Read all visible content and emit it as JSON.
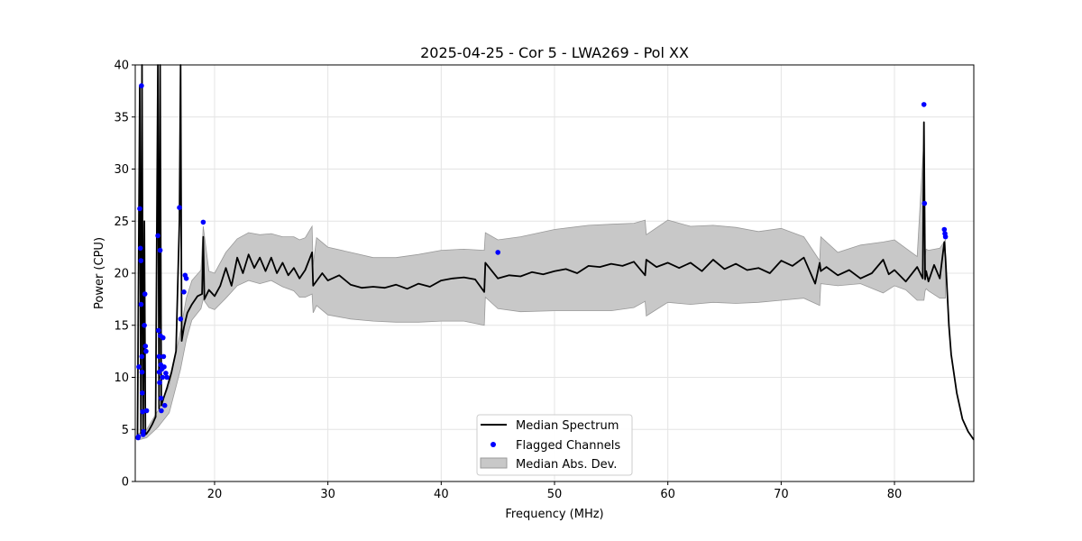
{
  "chart_data": {
    "type": "line",
    "title": "2025-04-25 - Cor 5 - LWA269 - Pol XX",
    "xlabel": "Frequency (MHz)",
    "ylabel": "Power (CPU)",
    "xlim": [
      13.0,
      87.0
    ],
    "ylim": [
      0,
      40
    ],
    "xticks": [
      20,
      30,
      40,
      50,
      60,
      70,
      80
    ],
    "yticks": [
      0,
      5,
      10,
      15,
      20,
      25,
      30,
      35,
      40
    ],
    "grid": true,
    "legend_position": "bottom-center",
    "colors": {
      "median": "#000000",
      "flagged": "#0000ff",
      "band_fill": "#c8c8c8",
      "band_edge": "#9a9a9a",
      "grid": "#e4e4e4"
    },
    "series": [
      {
        "name": "Median Spectrum",
        "x": [
          13.2,
          13.4,
          13.5,
          13.6,
          13.7,
          13.8,
          13.9,
          14.0,
          14.2,
          14.5,
          14.8,
          15.0,
          15.1,
          15.2,
          15.3,
          15.5,
          15.8,
          16.2,
          16.6,
          16.9,
          17.0,
          17.1,
          17.3,
          17.6,
          18.0,
          18.5,
          18.9,
          19.0,
          19.1,
          19.5,
          20.0,
          20.5,
          21.0,
          21.5,
          22.0,
          22.5,
          23.0,
          23.5,
          24.0,
          24.5,
          25.0,
          25.5,
          26.0,
          26.5,
          27.0,
          27.5,
          28.0,
          28.6,
          28.7,
          29.5,
          30.0,
          31.0,
          32.0,
          33.0,
          34.0,
          35.0,
          36.0,
          37.0,
          38.0,
          39.0,
          40.0,
          41.0,
          42.0,
          43.0,
          43.8,
          43.9,
          45.0,
          46.0,
          47.0,
          48.0,
          49.0,
          50.0,
          51.0,
          52.0,
          53.0,
          54.0,
          55.0,
          56.0,
          57.0,
          58.0,
          58.1,
          59.0,
          60.0,
          61.0,
          62.0,
          63.0,
          64.0,
          65.0,
          66.0,
          67.0,
          68.0,
          69.0,
          70.0,
          71.0,
          72.0,
          73.0,
          73.4,
          73.5,
          74.0,
          75.0,
          76.0,
          77.0,
          78.0,
          79.0,
          79.5,
          80.0,
          81.0,
          82.0,
          82.5,
          82.6,
          82.7,
          82.8,
          83.0,
          83.5,
          84.0,
          84.4,
          84.5,
          84.8,
          85.0,
          85.5,
          86.0,
          86.5,
          87.0
        ],
        "y": [
          4.3,
          38,
          4.6,
          40,
          4.4,
          25,
          4.5,
          4.6,
          4.9,
          5.5,
          6.2,
          40,
          7.0,
          40,
          7.3,
          8.0,
          9.0,
          10.5,
          12.5,
          25,
          40,
          13.5,
          14.8,
          16.2,
          17.0,
          17.8,
          18.0,
          23.5,
          17.5,
          18.4,
          17.8,
          18.8,
          20.5,
          18.8,
          21.5,
          20.0,
          21.8,
          20.5,
          21.5,
          20.2,
          21.5,
          20.0,
          21.0,
          19.8,
          20.5,
          19.5,
          20.3,
          22.0,
          18.8,
          20.0,
          19.3,
          19.8,
          18.9,
          18.6,
          18.7,
          18.6,
          18.9,
          18.5,
          19.0,
          18.7,
          19.3,
          19.5,
          19.6,
          19.4,
          18.2,
          21.0,
          19.5,
          19.8,
          19.7,
          20.1,
          19.9,
          20.2,
          20.4,
          20.0,
          20.7,
          20.6,
          20.9,
          20.7,
          21.1,
          19.8,
          21.3,
          20.6,
          21.0,
          20.5,
          21.0,
          20.2,
          21.3,
          20.4,
          20.9,
          20.3,
          20.5,
          20.0,
          21.2,
          20.7,
          21.5,
          19.0,
          21.0,
          20.2,
          20.6,
          19.8,
          20.3,
          19.5,
          20.0,
          21.3,
          19.9,
          20.3,
          19.2,
          20.6,
          19.5,
          34.5,
          19.4,
          20.2,
          19.2,
          20.8,
          19.5,
          23.0,
          21.5,
          15.0,
          12.2,
          8.5,
          6.0,
          4.8,
          4.0
        ]
      },
      {
        "name": "Median Abs. Dev.",
        "x": [
          13.3,
          14.0,
          15.0,
          16.0,
          17.0,
          17.5,
          18.0,
          18.8,
          19.0,
          19.5,
          20.0,
          21.0,
          22.0,
          23.0,
          24.0,
          25.0,
          26.0,
          27.0,
          27.5,
          28.0,
          28.6,
          28.7,
          29.0,
          30.0,
          32.0,
          34.0,
          36.0,
          38.0,
          40.0,
          42.0,
          43.8,
          43.9,
          45.0,
          47.0,
          50.0,
          53.0,
          55.0,
          57.0,
          58.0,
          58.1,
          60.0,
          62.0,
          64.0,
          66.0,
          68.0,
          70.0,
          72.0,
          73.4,
          73.5,
          75.0,
          77.0,
          79.0,
          80.0,
          81.0,
          82.0,
          82.6,
          82.7,
          82.8,
          83.0,
          84.0,
          84.5
        ],
        "upper": [
          4.6,
          5.0,
          6.8,
          9.2,
          14.5,
          17.6,
          19.3,
          20.3,
          24.5,
          20.2,
          20.0,
          22.0,
          23.3,
          23.9,
          23.7,
          23.8,
          23.5,
          23.5,
          23.2,
          23.4,
          24.5,
          20.8,
          23.4,
          22.5,
          22.0,
          21.5,
          21.5,
          21.8,
          22.2,
          22.3,
          22.2,
          23.9,
          23.2,
          23.5,
          24.2,
          24.6,
          24.7,
          24.8,
          25.1,
          23.7,
          25.1,
          24.5,
          24.6,
          24.4,
          24.0,
          24.3,
          23.5,
          21.2,
          23.5,
          22.0,
          22.7,
          23.0,
          23.2,
          22.4,
          21.6,
          33.0,
          21.6,
          22.3,
          22.2,
          22.4,
          23.2
        ],
        "lower": [
          4.0,
          4.2,
          5.2,
          6.6,
          10.8,
          13.6,
          15.5,
          16.6,
          17.5,
          16.7,
          16.5,
          17.6,
          18.8,
          19.3,
          19.0,
          19.3,
          18.7,
          18.3,
          17.7,
          17.7,
          18.0,
          16.2,
          16.9,
          16.0,
          15.6,
          15.4,
          15.3,
          15.3,
          15.4,
          15.4,
          15.0,
          17.7,
          16.6,
          16.3,
          16.4,
          16.4,
          16.4,
          16.7,
          17.3,
          15.9,
          17.2,
          17.0,
          17.2,
          17.1,
          17.2,
          17.4,
          17.6,
          16.9,
          19.0,
          18.8,
          19.0,
          18.1,
          18.8,
          18.4,
          17.4,
          17.4,
          18.3,
          18.5,
          18.3,
          17.6,
          17.6
        ]
      },
      {
        "name": "Flagged Channels",
        "x": [
          13.25,
          13.28,
          13.32,
          13.4,
          13.45,
          13.5,
          13.52,
          13.55,
          13.58,
          13.6,
          13.62,
          13.65,
          13.7,
          13.72,
          13.8,
          13.85,
          13.9,
          13.95,
          14.0,
          15.0,
          15.05,
          15.1,
          15.12,
          15.15,
          15.2,
          15.22,
          15.25,
          15.28,
          15.3,
          15.35,
          15.4,
          15.45,
          15.5,
          15.55,
          15.6,
          15.7,
          15.8,
          16.9,
          17.0,
          17.3,
          17.4,
          17.5,
          19.0,
          45.0,
          82.6,
          82.65,
          84.4,
          84.45,
          84.5
        ],
        "y": [
          4.2,
          4.3,
          11.0,
          26.2,
          22.4,
          21.2,
          17.0,
          38.0,
          12.0,
          10.5,
          8.5,
          6.7,
          4.5,
          4.8,
          15.0,
          18.0,
          13.0,
          12.5,
          6.8,
          23.6,
          14.5,
          12.0,
          10.5,
          9.5,
          22.2,
          14.0,
          11.2,
          8.0,
          6.8,
          10.8,
          10.0,
          13.8,
          12.0,
          11.0,
          7.3,
          10.4,
          10.0,
          26.3,
          15.6,
          18.2,
          19.8,
          19.5,
          24.9,
          22.0,
          36.2,
          26.7,
          24.2,
          23.8,
          23.5
        ]
      }
    ]
  }
}
